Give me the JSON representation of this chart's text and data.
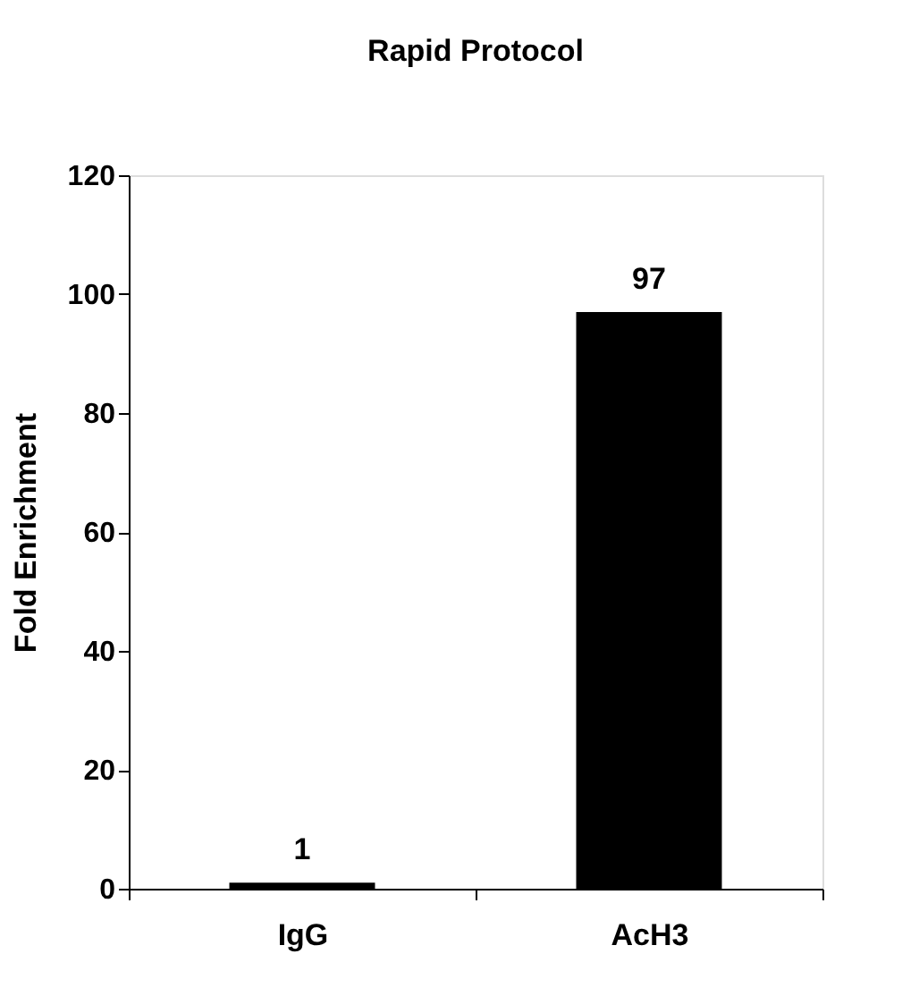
{
  "chart_data": {
    "type": "bar",
    "title": "Rapid Protocol",
    "ylabel": "Fold Enrichment",
    "categories": [
      "IgG",
      "AcH3"
    ],
    "values": [
      1,
      97
    ],
    "color": "#000000",
    "ylim": [
      0,
      120
    ],
    "yticks": [
      0,
      20,
      40,
      60,
      80,
      100,
      120
    ],
    "data_labels": true,
    "grid": false
  }
}
